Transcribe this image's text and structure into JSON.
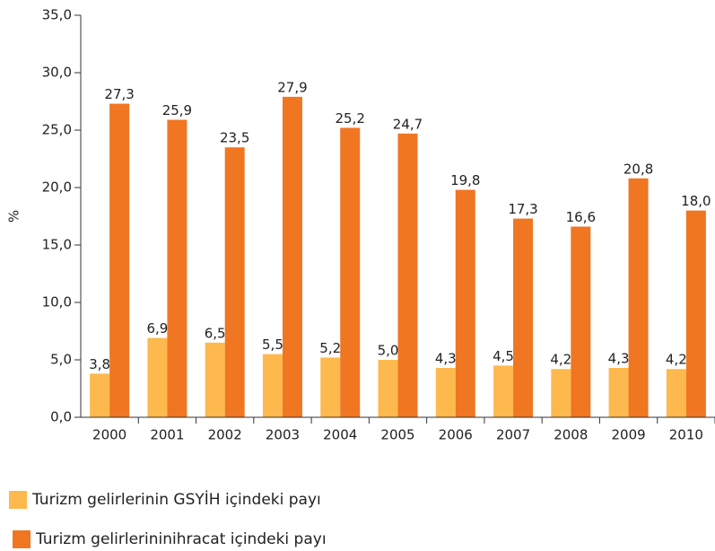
{
  "chart_data": {
    "type": "bar",
    "y_label": "%",
    "categories": [
      "2000",
      "2001",
      "2002",
      "2003",
      "2004",
      "2005",
      "2006",
      "2007",
      "2008",
      "2009",
      "2010"
    ],
    "series": [
      {
        "name": "Turizm gelirlerinin GSYİH içindeki payı",
        "color": "#fdb94e",
        "values": [
          3.8,
          6.9,
          6.5,
          5.5,
          5.2,
          5.0,
          4.3,
          4.5,
          4.2,
          4.3,
          4.2
        ],
        "value_labels": [
          "3,8",
          "6,9",
          "6,5",
          "5,5",
          "5,2",
          "5,0",
          "4,3",
          "4,5",
          "4,2",
          "4,3",
          "4,2"
        ]
      },
      {
        "name": "Turizm gelirlerininihracat içindeki payı",
        "color": "#f07622",
        "values": [
          27.3,
          25.9,
          23.5,
          27.9,
          25.2,
          24.7,
          19.8,
          17.3,
          16.6,
          20.8,
          18.0
        ],
        "value_labels": [
          "27,3",
          "25,9",
          "23,5",
          "27,9",
          "25,2",
          "24,7",
          "19,8",
          "17,3",
          "16,6",
          "20,8",
          "18,0"
        ]
      }
    ],
    "ylim": [
      0,
      35
    ],
    "yticks": [
      {
        "value": 0,
        "label": "0,0"
      },
      {
        "value": 5,
        "label": "5,0"
      },
      {
        "value": 10,
        "label": "10,0"
      },
      {
        "value": 15,
        "label": "15,0"
      },
      {
        "value": 20,
        "label": "20,0"
      },
      {
        "value": 25,
        "label": "25,0"
      },
      {
        "value": 30,
        "label": "30,0"
      },
      {
        "value": 35,
        "label": "35,0"
      }
    ],
    "grid": false,
    "legend": "bottom-left"
  }
}
